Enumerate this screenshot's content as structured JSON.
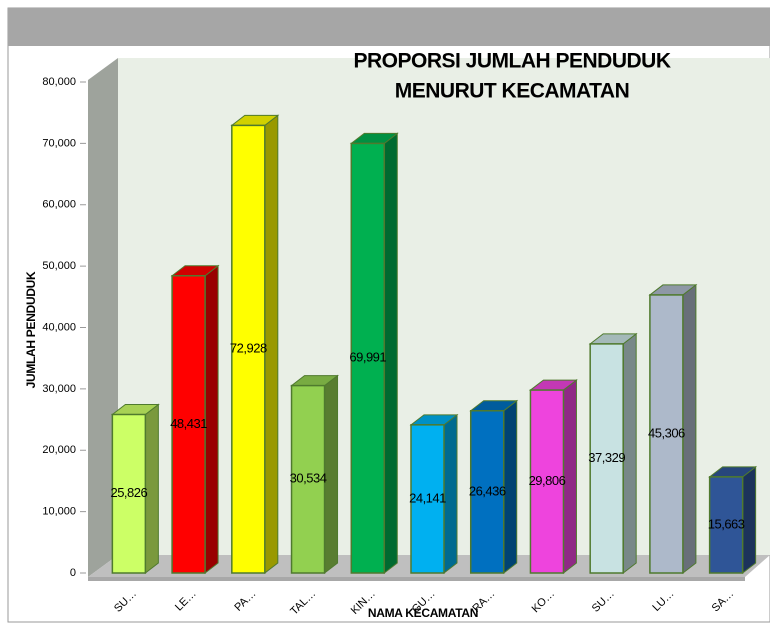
{
  "chart_data": {
    "type": "bar3d",
    "title": [
      "PROPORSI JUMLAH PENDUDUK",
      "MENURUT KECAMATAN"
    ],
    "y_label": "JUMLAH PENDUDUK",
    "x_label": "NAMA KECAMATAN",
    "categories": [
      "SU…",
      "LE…",
      "PA…",
      "TAL…",
      "KIN…",
      "GU…",
      "RA…",
      "KO…",
      "SU…",
      "LU…",
      "SA…"
    ],
    "values": [
      25826,
      48431,
      72928,
      30534,
      69991,
      24141,
      26436,
      29806,
      37329,
      45306,
      15663
    ],
    "value_labels": [
      "25,826",
      "48,431",
      "72,928",
      "30,534",
      "69,991",
      "24,141",
      "26,436",
      "29,806",
      "37,329",
      "45,306",
      "15,663"
    ],
    "colors": [
      "#ccff66",
      "#ff0000",
      "#ffff00",
      "#92d050",
      "#00b050",
      "#00b0f0",
      "#0070c0",
      "#ee44dd",
      "#c8e2e2",
      "#adb9ca",
      "#2f5597"
    ],
    "ylim": [
      0,
      80000
    ],
    "yticks": [
      0,
      {
        "value": 10000,
        "label": "10,000"
      },
      {
        "value": 20000,
        "label": "20,000"
      },
      {
        "value": 30000,
        "label": "30,000"
      },
      {
        "value": 40000,
        "label": "40,000"
      },
      {
        "value": 50000,
        "label": "50,000"
      },
      {
        "value": 60000,
        "label": "60,000"
      },
      {
        "value": 70000,
        "label": "70,000"
      },
      {
        "value": 80000,
        "label": "80,000"
      }
    ],
    "grid": false
  }
}
